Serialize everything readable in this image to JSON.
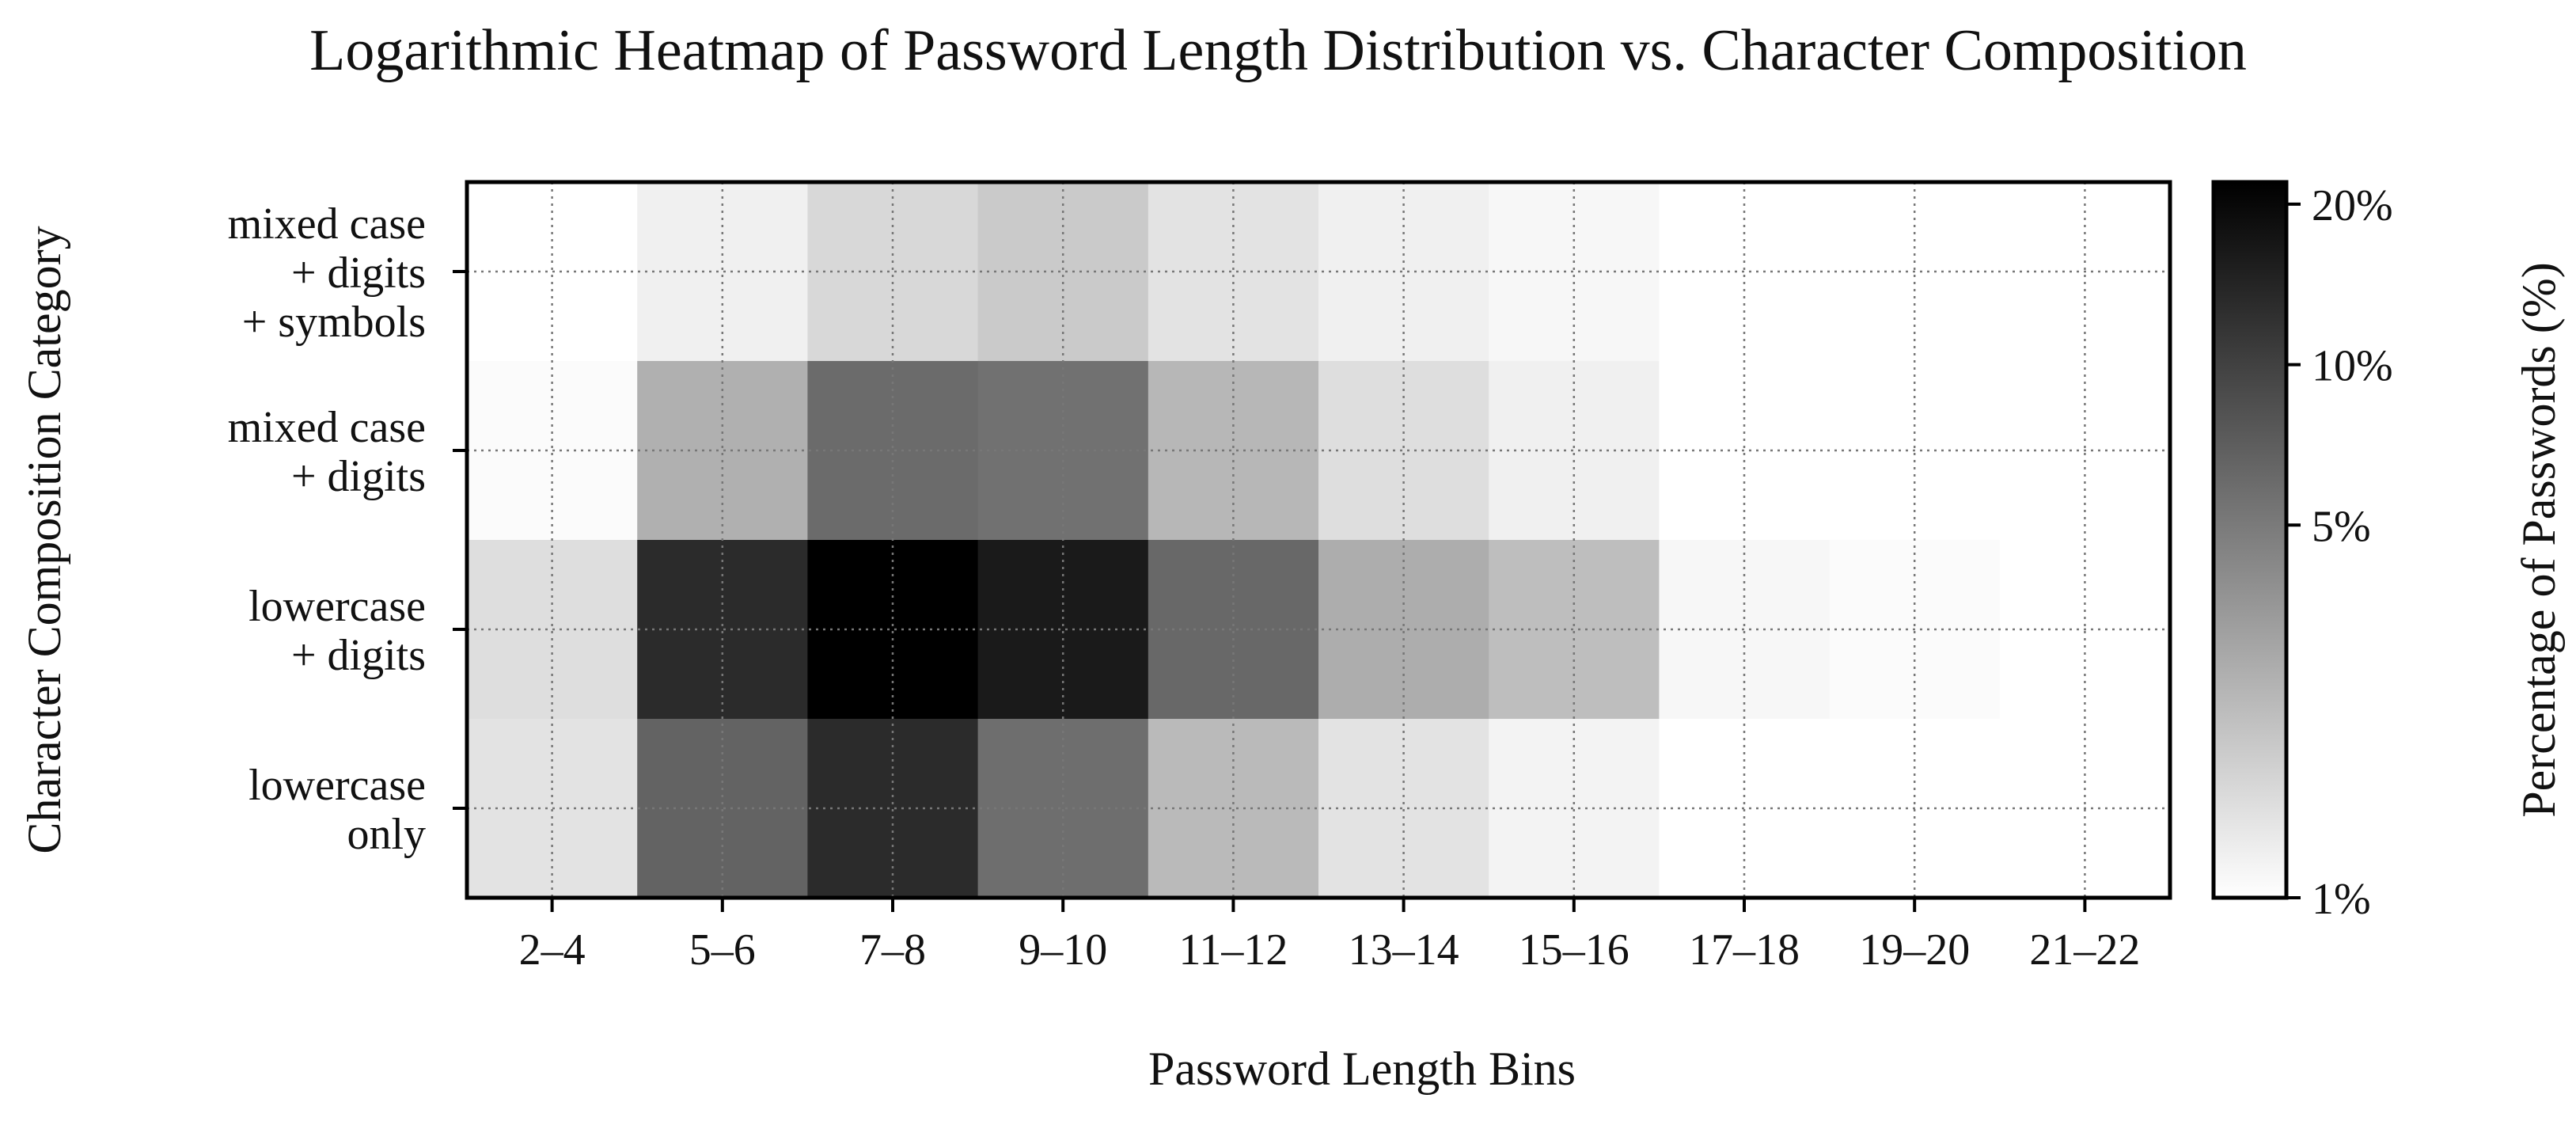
{
  "chart_data": {
    "type": "heatmap",
    "title": "Logarithmic Heatmap of Password Length Distribution vs. Character Composition",
    "xlabel": "Password Length Bins",
    "ylabel": "Character Composition Category",
    "x_categories": [
      "2–4",
      "5–6",
      "7–8",
      "9–10",
      "11–12",
      "13–14",
      "15–16",
      "17–18",
      "19–20",
      "21–22"
    ],
    "y_categories": [
      "mixed case\n+ digits\n+ symbols",
      "mixed case\n+ digits",
      "lowercase\n+ digits",
      "lowercase\nonly"
    ],
    "values": [
      [
        1.0,
        1.2,
        1.6,
        1.9,
        1.4,
        1.2,
        1.1,
        1.0,
        1.0,
        1.0
      ],
      [
        1.05,
        2.6,
        6.0,
        5.6,
        2.4,
        1.5,
        1.2,
        1.0,
        1.0,
        1.0
      ],
      [
        1.5,
        13.0,
        22.0,
        16.0,
        6.2,
        2.7,
        2.2,
        1.1,
        1.05,
        1.0
      ],
      [
        1.4,
        6.6,
        13.0,
        5.8,
        2.3,
        1.4,
        1.15,
        1.0,
        1.0,
        1.0
      ]
    ],
    "colorbar": {
      "label": "Percentage of Passwords (%)",
      "scale": "log",
      "range": [
        1,
        22
      ],
      "ticks": [
        1,
        5,
        10,
        20
      ],
      "tick_labels": [
        "1%",
        "5%",
        "10%",
        "20%"
      ],
      "colormap": [
        "#ffffff",
        "#000000"
      ]
    },
    "grid": true
  }
}
